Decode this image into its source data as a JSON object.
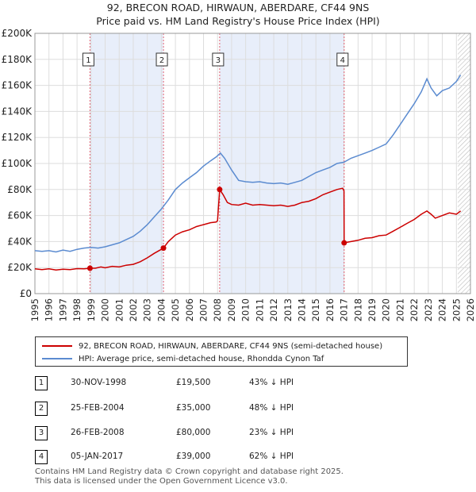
{
  "chart_data": {
    "type": "line",
    "title": "92, BRECON ROAD, HIRWAUN, ABERDARE, CF44 9NS",
    "subtitle": "Price paid vs. HM Land Registry's House Price Index (HPI)",
    "xlim": [
      1995,
      2026
    ],
    "ylim": [
      0,
      200000
    ],
    "x_ticks": [
      "1995",
      "1996",
      "1997",
      "1998",
      "1999",
      "2000",
      "2001",
      "2002",
      "2003",
      "2004",
      "2005",
      "2006",
      "2007",
      "2008",
      "2009",
      "2010",
      "2011",
      "2012",
      "2013",
      "2014",
      "2015",
      "2016",
      "2017",
      "2018",
      "2019",
      "2020",
      "2021",
      "2022",
      "2023",
      "2024",
      "2025",
      "2026"
    ],
    "y_ticks": [
      {
        "value": 0,
        "label": "£0"
      },
      {
        "value": 20000,
        "label": "£20K"
      },
      {
        "value": 40000,
        "label": "£40K"
      },
      {
        "value": 60000,
        "label": "£60K"
      },
      {
        "value": 80000,
        "label": "£80K"
      },
      {
        "value": 100000,
        "label": "£100K"
      },
      {
        "value": 120000,
        "label": "£120K"
      },
      {
        "value": 140000,
        "label": "£140K"
      },
      {
        "value": 160000,
        "label": "£160K"
      },
      {
        "value": 180000,
        "label": "£180K"
      },
      {
        "value": 200000,
        "label": "£200K"
      }
    ],
    "forecast_from": 2025.1,
    "sale_markers": [
      {
        "label": "1",
        "x": 1998.92,
        "y": 19500
      },
      {
        "label": "2",
        "x": 2004.15,
        "y": 35000
      },
      {
        "label": "3",
        "x": 2008.15,
        "y": 80000
      },
      {
        "label": "4",
        "x": 2017.01,
        "y": 39000
      }
    ],
    "shaded_spans": [
      [
        1998.92,
        2004.15
      ],
      [
        2008.15,
        2017.01
      ]
    ],
    "series": [
      {
        "name": "92, BRECON ROAD, HIRWAUN, ABERDARE, CF44 9NS (semi-detached house)",
        "color": "#cc0000",
        "points": [
          [
            1995,
            19000
          ],
          [
            1995.5,
            18500
          ],
          [
            1996,
            19000
          ],
          [
            1996.5,
            18200
          ],
          [
            1997,
            18800
          ],
          [
            1997.5,
            18500
          ],
          [
            1998,
            19200
          ],
          [
            1998.5,
            19000
          ],
          [
            1998.92,
            19500
          ],
          [
            1999.3,
            19500
          ],
          [
            1999.7,
            20500
          ],
          [
            2000,
            19800
          ],
          [
            2000.5,
            21000
          ],
          [
            2001,
            20500
          ],
          [
            2001.5,
            21800
          ],
          [
            2002,
            22500
          ],
          [
            2002.5,
            24500
          ],
          [
            2003,
            27500
          ],
          [
            2003.5,
            31000
          ],
          [
            2004,
            34000
          ],
          [
            2004.15,
            35000
          ],
          [
            2004.5,
            40000
          ],
          [
            2005,
            45000
          ],
          [
            2005.5,
            47500
          ],
          [
            2006,
            49000
          ],
          [
            2006.5,
            51500
          ],
          [
            2007,
            53000
          ],
          [
            2007.5,
            54500
          ],
          [
            2007.9,
            55000
          ],
          [
            2008.0,
            56000
          ],
          [
            2008.15,
            80000
          ],
          [
            2008.4,
            76000
          ],
          [
            2008.7,
            70000
          ],
          [
            2009,
            68500
          ],
          [
            2009.5,
            68000
          ],
          [
            2010,
            69500
          ],
          [
            2010.5,
            68000
          ],
          [
            2011,
            68500
          ],
          [
            2011.5,
            68000
          ],
          [
            2012,
            67500
          ],
          [
            2012.5,
            68000
          ],
          [
            2013,
            67000
          ],
          [
            2013.5,
            68000
          ],
          [
            2014,
            70000
          ],
          [
            2014.5,
            71000
          ],
          [
            2015,
            73000
          ],
          [
            2015.5,
            76000
          ],
          [
            2016,
            78000
          ],
          [
            2016.5,
            80000
          ],
          [
            2016.9,
            81000
          ],
          [
            2017.0,
            79000
          ],
          [
            2017.01,
            39000
          ],
          [
            2017.5,
            40000
          ],
          [
            2018,
            41000
          ],
          [
            2018.5,
            42500
          ],
          [
            2019,
            43000
          ],
          [
            2019.5,
            44500
          ],
          [
            2020,
            45000
          ],
          [
            2020.5,
            48000
          ],
          [
            2021,
            51000
          ],
          [
            2021.5,
            54000
          ],
          [
            2022,
            57000
          ],
          [
            2022.5,
            61000
          ],
          [
            2022.9,
            63500
          ],
          [
            2023.2,
            61000
          ],
          [
            2023.5,
            58000
          ],
          [
            2024,
            60000
          ],
          [
            2024.5,
            62000
          ],
          [
            2025,
            61000
          ],
          [
            2025.3,
            63500
          ]
        ]
      },
      {
        "name": "HPI: Average price, semi-detached house, Rhondda Cynon Taf",
        "color": "#5b8bd0",
        "points": [
          [
            1995,
            33000
          ],
          [
            1995.5,
            32500
          ],
          [
            1996,
            33000
          ],
          [
            1996.5,
            32000
          ],
          [
            1997,
            33500
          ],
          [
            1997.5,
            32500
          ],
          [
            1998,
            34000
          ],
          [
            1998.5,
            35000
          ],
          [
            1999,
            35500
          ],
          [
            1999.5,
            35000
          ],
          [
            2000,
            36000
          ],
          [
            2000.5,
            37500
          ],
          [
            2001,
            39000
          ],
          [
            2001.5,
            41500
          ],
          [
            2002,
            44000
          ],
          [
            2002.5,
            48000
          ],
          [
            2003,
            53000
          ],
          [
            2003.5,
            59000
          ],
          [
            2004,
            65000
          ],
          [
            2004.5,
            72000
          ],
          [
            2005,
            80000
          ],
          [
            2005.5,
            85000
          ],
          [
            2006,
            89000
          ],
          [
            2006.5,
            93000
          ],
          [
            2007,
            98000
          ],
          [
            2007.5,
            102000
          ],
          [
            2007.9,
            105000
          ],
          [
            2008.2,
            108000
          ],
          [
            2008.5,
            104000
          ],
          [
            2009,
            95000
          ],
          [
            2009.5,
            87000
          ],
          [
            2010,
            86000
          ],
          [
            2010.5,
            85500
          ],
          [
            2011,
            86000
          ],
          [
            2011.5,
            85000
          ],
          [
            2012,
            84500
          ],
          [
            2012.5,
            85000
          ],
          [
            2013,
            84000
          ],
          [
            2013.5,
            85500
          ],
          [
            2014,
            87000
          ],
          [
            2014.5,
            90000
          ],
          [
            2015,
            93000
          ],
          [
            2015.5,
            95000
          ],
          [
            2016,
            97000
          ],
          [
            2016.5,
            100000
          ],
          [
            2017,
            101000
          ],
          [
            2017.5,
            104000
          ],
          [
            2018,
            106000
          ],
          [
            2018.5,
            108000
          ],
          [
            2019,
            110000
          ],
          [
            2019.5,
            112500
          ],
          [
            2020,
            115000
          ],
          [
            2020.5,
            122000
          ],
          [
            2021,
            130000
          ],
          [
            2021.5,
            138000
          ],
          [
            2022,
            146000
          ],
          [
            2022.5,
            155000
          ],
          [
            2022.9,
            165000
          ],
          [
            2023.2,
            158000
          ],
          [
            2023.6,
            152000
          ],
          [
            2024,
            156000
          ],
          [
            2024.5,
            158000
          ],
          [
            2025,
            163000
          ],
          [
            2025.3,
            168000
          ]
        ]
      }
    ]
  },
  "legend": {
    "items": [
      {
        "label": "92, BRECON ROAD, HIRWAUN, ABERDARE, CF44 9NS (semi-detached house)",
        "color": "#cc0000"
      },
      {
        "label": "HPI: Average price, semi-detached house, Rhondda Cynon Taf",
        "color": "#5b8bd0"
      }
    ]
  },
  "sales": [
    {
      "num": "1",
      "date": "30-NOV-1998",
      "price": "£19,500",
      "hpi": "43% ↓ HPI"
    },
    {
      "num": "2",
      "date": "25-FEB-2004",
      "price": "£35,000",
      "hpi": "48% ↓ HPI"
    },
    {
      "num": "3",
      "date": "26-FEB-2008",
      "price": "£80,000",
      "hpi": "23% ↓ HPI"
    },
    {
      "num": "4",
      "date": "05-JAN-2017",
      "price": "£39,000",
      "hpi": "62% ↓ HPI"
    }
  ],
  "footer": {
    "line1": "Contains HM Land Registry data © Crown copyright and database right 2025.",
    "line2": "This data is licensed under the Open Government Licence v3.0."
  }
}
